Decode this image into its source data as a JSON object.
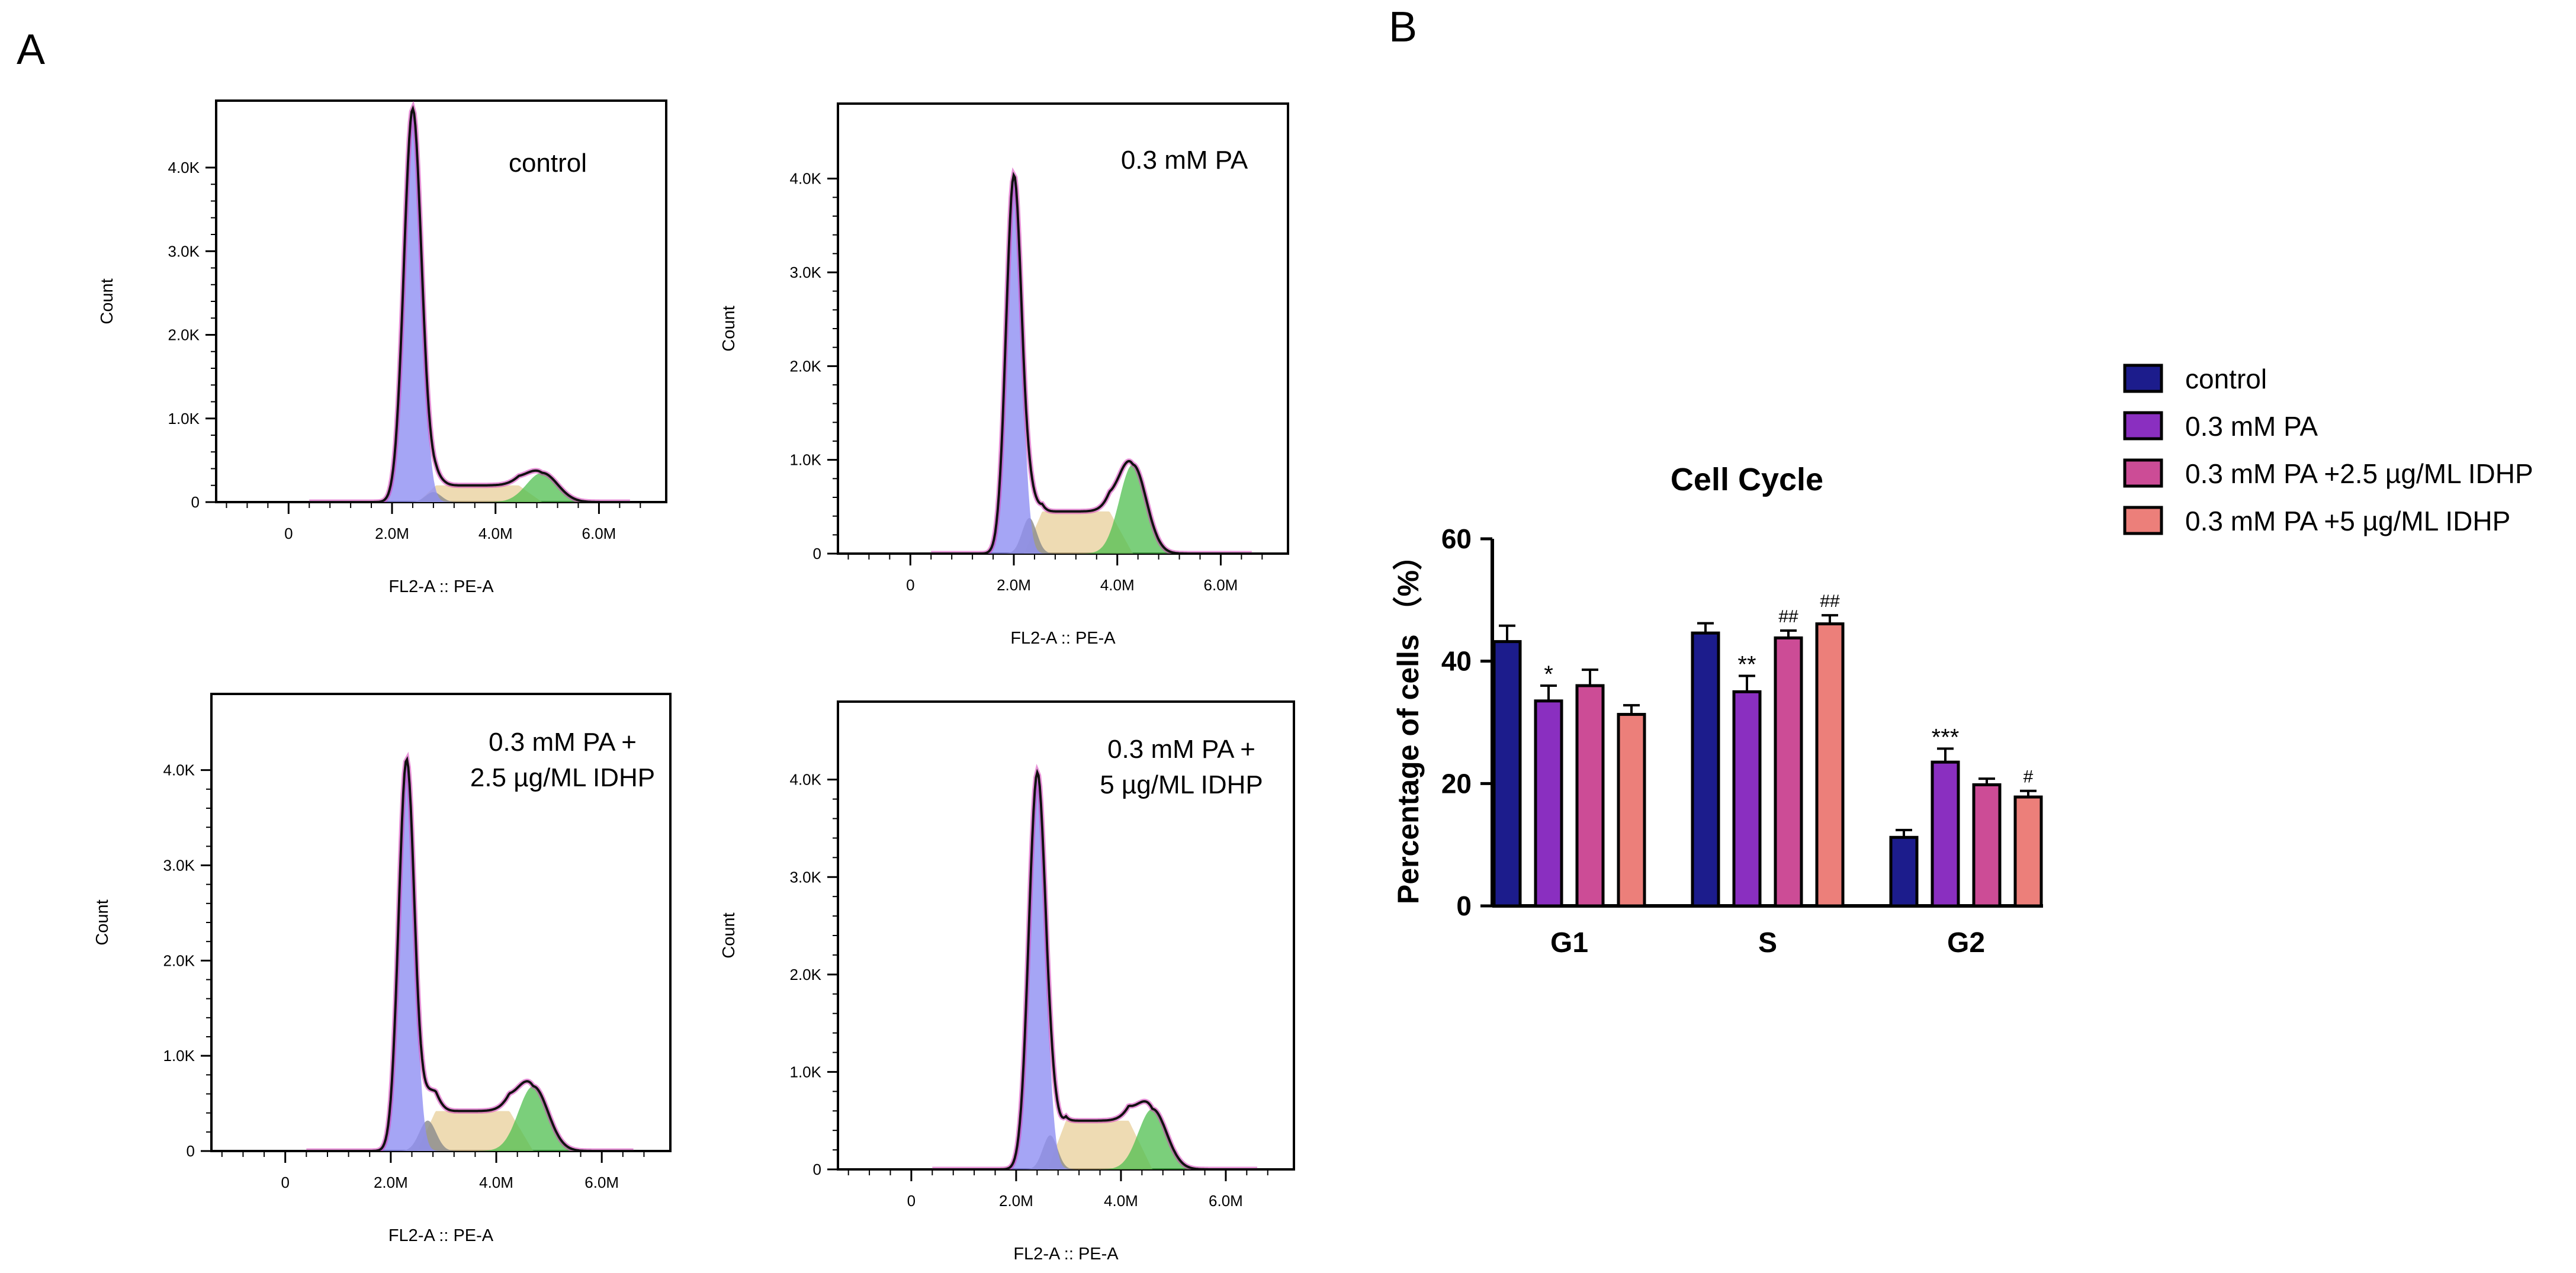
{
  "panel_labels": {
    "a": "A",
    "b": "B"
  },
  "chart_data": [
    {
      "type": "area",
      "id": "hist-control",
      "title": "control",
      "title_lines": [
        "control"
      ],
      "xlabel": "FL2-A :: PE-A",
      "ylabel": "Count",
      "x_ticks": [
        "0",
        "2.0M",
        "4.0M",
        "6.0M"
      ],
      "x_tick_values": [
        0,
        2.0,
        4.0,
        6.0
      ],
      "y_ticks": [
        "0",
        "1.0K",
        "2.0K",
        "3.0K",
        "4.0K"
      ],
      "y_tick_values": [
        0,
        1.0,
        2.0,
        3.0,
        4.0
      ],
      "xlim": [
        -1.4,
        7.3
      ],
      "ylim": [
        0,
        4.8
      ],
      "g1_peak": {
        "mean": 2.4,
        "sd": 0.17,
        "height": 4.7
      },
      "g2_peak": {
        "mean": 4.9,
        "sd": 0.3,
        "height": 0.35
      },
      "s_phase": {
        "start": 2.5,
        "end": 4.9,
        "height": 0.2
      },
      "debris_peak": {
        "mean": 2.8,
        "sd": 0.15,
        "height": 0.12
      }
    },
    {
      "type": "area",
      "id": "hist-pa",
      "title": "0.3 mM PA",
      "title_lines": [
        "0.3 mM PA"
      ],
      "xlabel": "FL2-A :: PE-A",
      "ylabel": "Count",
      "x_ticks": [
        "0",
        "2.0M",
        "4.0M",
        "6.0M"
      ],
      "x_tick_values": [
        0,
        2.0,
        4.0,
        6.0
      ],
      "y_ticks": [
        "0",
        "1.0K",
        "2.0K",
        "3.0K",
        "4.0K"
      ],
      "y_tick_values": [
        0,
        1.0,
        2.0,
        3.0,
        4.0
      ],
      "xlim": [
        -1.4,
        7.3
      ],
      "ylim": [
        0,
        4.8
      ],
      "g1_peak": {
        "mean": 2.0,
        "sd": 0.15,
        "height": 4.0
      },
      "g2_peak": {
        "mean": 4.3,
        "sd": 0.26,
        "height": 0.95
      },
      "s_phase": {
        "start": 2.2,
        "end": 4.3,
        "height": 0.45
      },
      "debris_peak": {
        "mean": 2.3,
        "sd": 0.14,
        "height": 0.38
      }
    },
    {
      "type": "area",
      "id": "hist-pa-idhp-25",
      "title": "0.3 mM PA + 2.5 µg/ML IDHP",
      "title_lines": [
        "0.3 mM PA +",
        "2.5 µg/ML IDHP"
      ],
      "xlabel": "FL2-A :: PE-A",
      "ylabel": "Count",
      "x_ticks": [
        "0",
        "2.0M",
        "4.0M",
        "6.0M"
      ],
      "x_tick_values": [
        0,
        2.0,
        4.0,
        6.0
      ],
      "y_ticks": [
        "0",
        "1.0K",
        "2.0K",
        "3.0K",
        "4.0K"
      ],
      "y_tick_values": [
        0,
        1.0,
        2.0,
        3.0,
        4.0
      ],
      "xlim": [
        -1.4,
        7.3
      ],
      "ylim": [
        0,
        4.8
      ],
      "g1_peak": {
        "mean": 2.3,
        "sd": 0.15,
        "height": 4.1
      },
      "g2_peak": {
        "mean": 4.7,
        "sd": 0.28,
        "height": 0.68
      },
      "s_phase": {
        "start": 2.5,
        "end": 4.7,
        "height": 0.42
      },
      "debris_peak": {
        "mean": 2.7,
        "sd": 0.16,
        "height": 0.32
      }
    },
    {
      "type": "area",
      "id": "hist-pa-idhp-5",
      "title": "0.3 mM PA + 5 µg/ML IDHP",
      "title_lines": [
        "0.3 mM PA +",
        "5 µg/ML IDHP"
      ],
      "xlabel": "FL2-A :: PE-A",
      "ylabel": "Count",
      "x_ticks": [
        "0",
        "2.0M",
        "4.0M",
        "6.0M"
      ],
      "x_tick_values": [
        0,
        2.0,
        4.0,
        6.0
      ],
      "y_ticks": [
        "0",
        "1.0K",
        "2.0K",
        "3.0K",
        "4.0K"
      ],
      "y_tick_values": [
        0,
        1.0,
        2.0,
        3.0,
        4.0
      ],
      "xlim": [
        -1.4,
        7.3
      ],
      "ylim": [
        0,
        4.8
      ],
      "g1_peak": {
        "mean": 2.4,
        "sd": 0.16,
        "height": 4.0
      },
      "g2_peak": {
        "mean": 4.6,
        "sd": 0.27,
        "height": 0.62
      },
      "s_phase": {
        "start": 2.6,
        "end": 4.6,
        "height": 0.5
      },
      "debris_peak": {
        "mean": 2.65,
        "sd": 0.14,
        "height": 0.35
      }
    },
    {
      "type": "bar",
      "id": "cell-cycle-bar",
      "title": "Cell Cycle",
      "xlabel": "",
      "ylabel": "Percentage of cells （%）",
      "categories": [
        "G1",
        "S",
        "G2"
      ],
      "ylim": [
        0,
        60
      ],
      "y_ticks": [
        0,
        20,
        40,
        60
      ],
      "legend_position": "right",
      "series": [
        {
          "name": "control",
          "color": "#1c1c8c",
          "values": [
            43.2,
            44.6,
            11.2
          ],
          "errors": [
            2.6,
            1.6,
            1.2
          ],
          "annotations": [
            "",
            "",
            ""
          ]
        },
        {
          "name": "0.3 mM PA",
          "color": "#8a2fc0",
          "values": [
            33.5,
            35.0,
            23.5
          ],
          "errors": [
            2.5,
            2.6,
            2.2
          ],
          "annotations": [
            "*",
            "**",
            "***"
          ]
        },
        {
          "name": "0.3 mM PA +2.5 µg/ML IDHP",
          "color": "#cc4c96",
          "values": [
            36.0,
            43.8,
            19.8
          ],
          "errors": [
            2.6,
            1.2,
            1.0
          ],
          "annotations": [
            "",
            "##",
            ""
          ]
        },
        {
          "name": "0.3 mM PA +5 µg/ML IDHP",
          "color": "#ec7f7a",
          "values": [
            31.3,
            46.1,
            17.8
          ],
          "errors": [
            1.5,
            1.4,
            1.0
          ],
          "annotations": [
            "",
            "##",
            "#"
          ]
        }
      ]
    }
  ]
}
